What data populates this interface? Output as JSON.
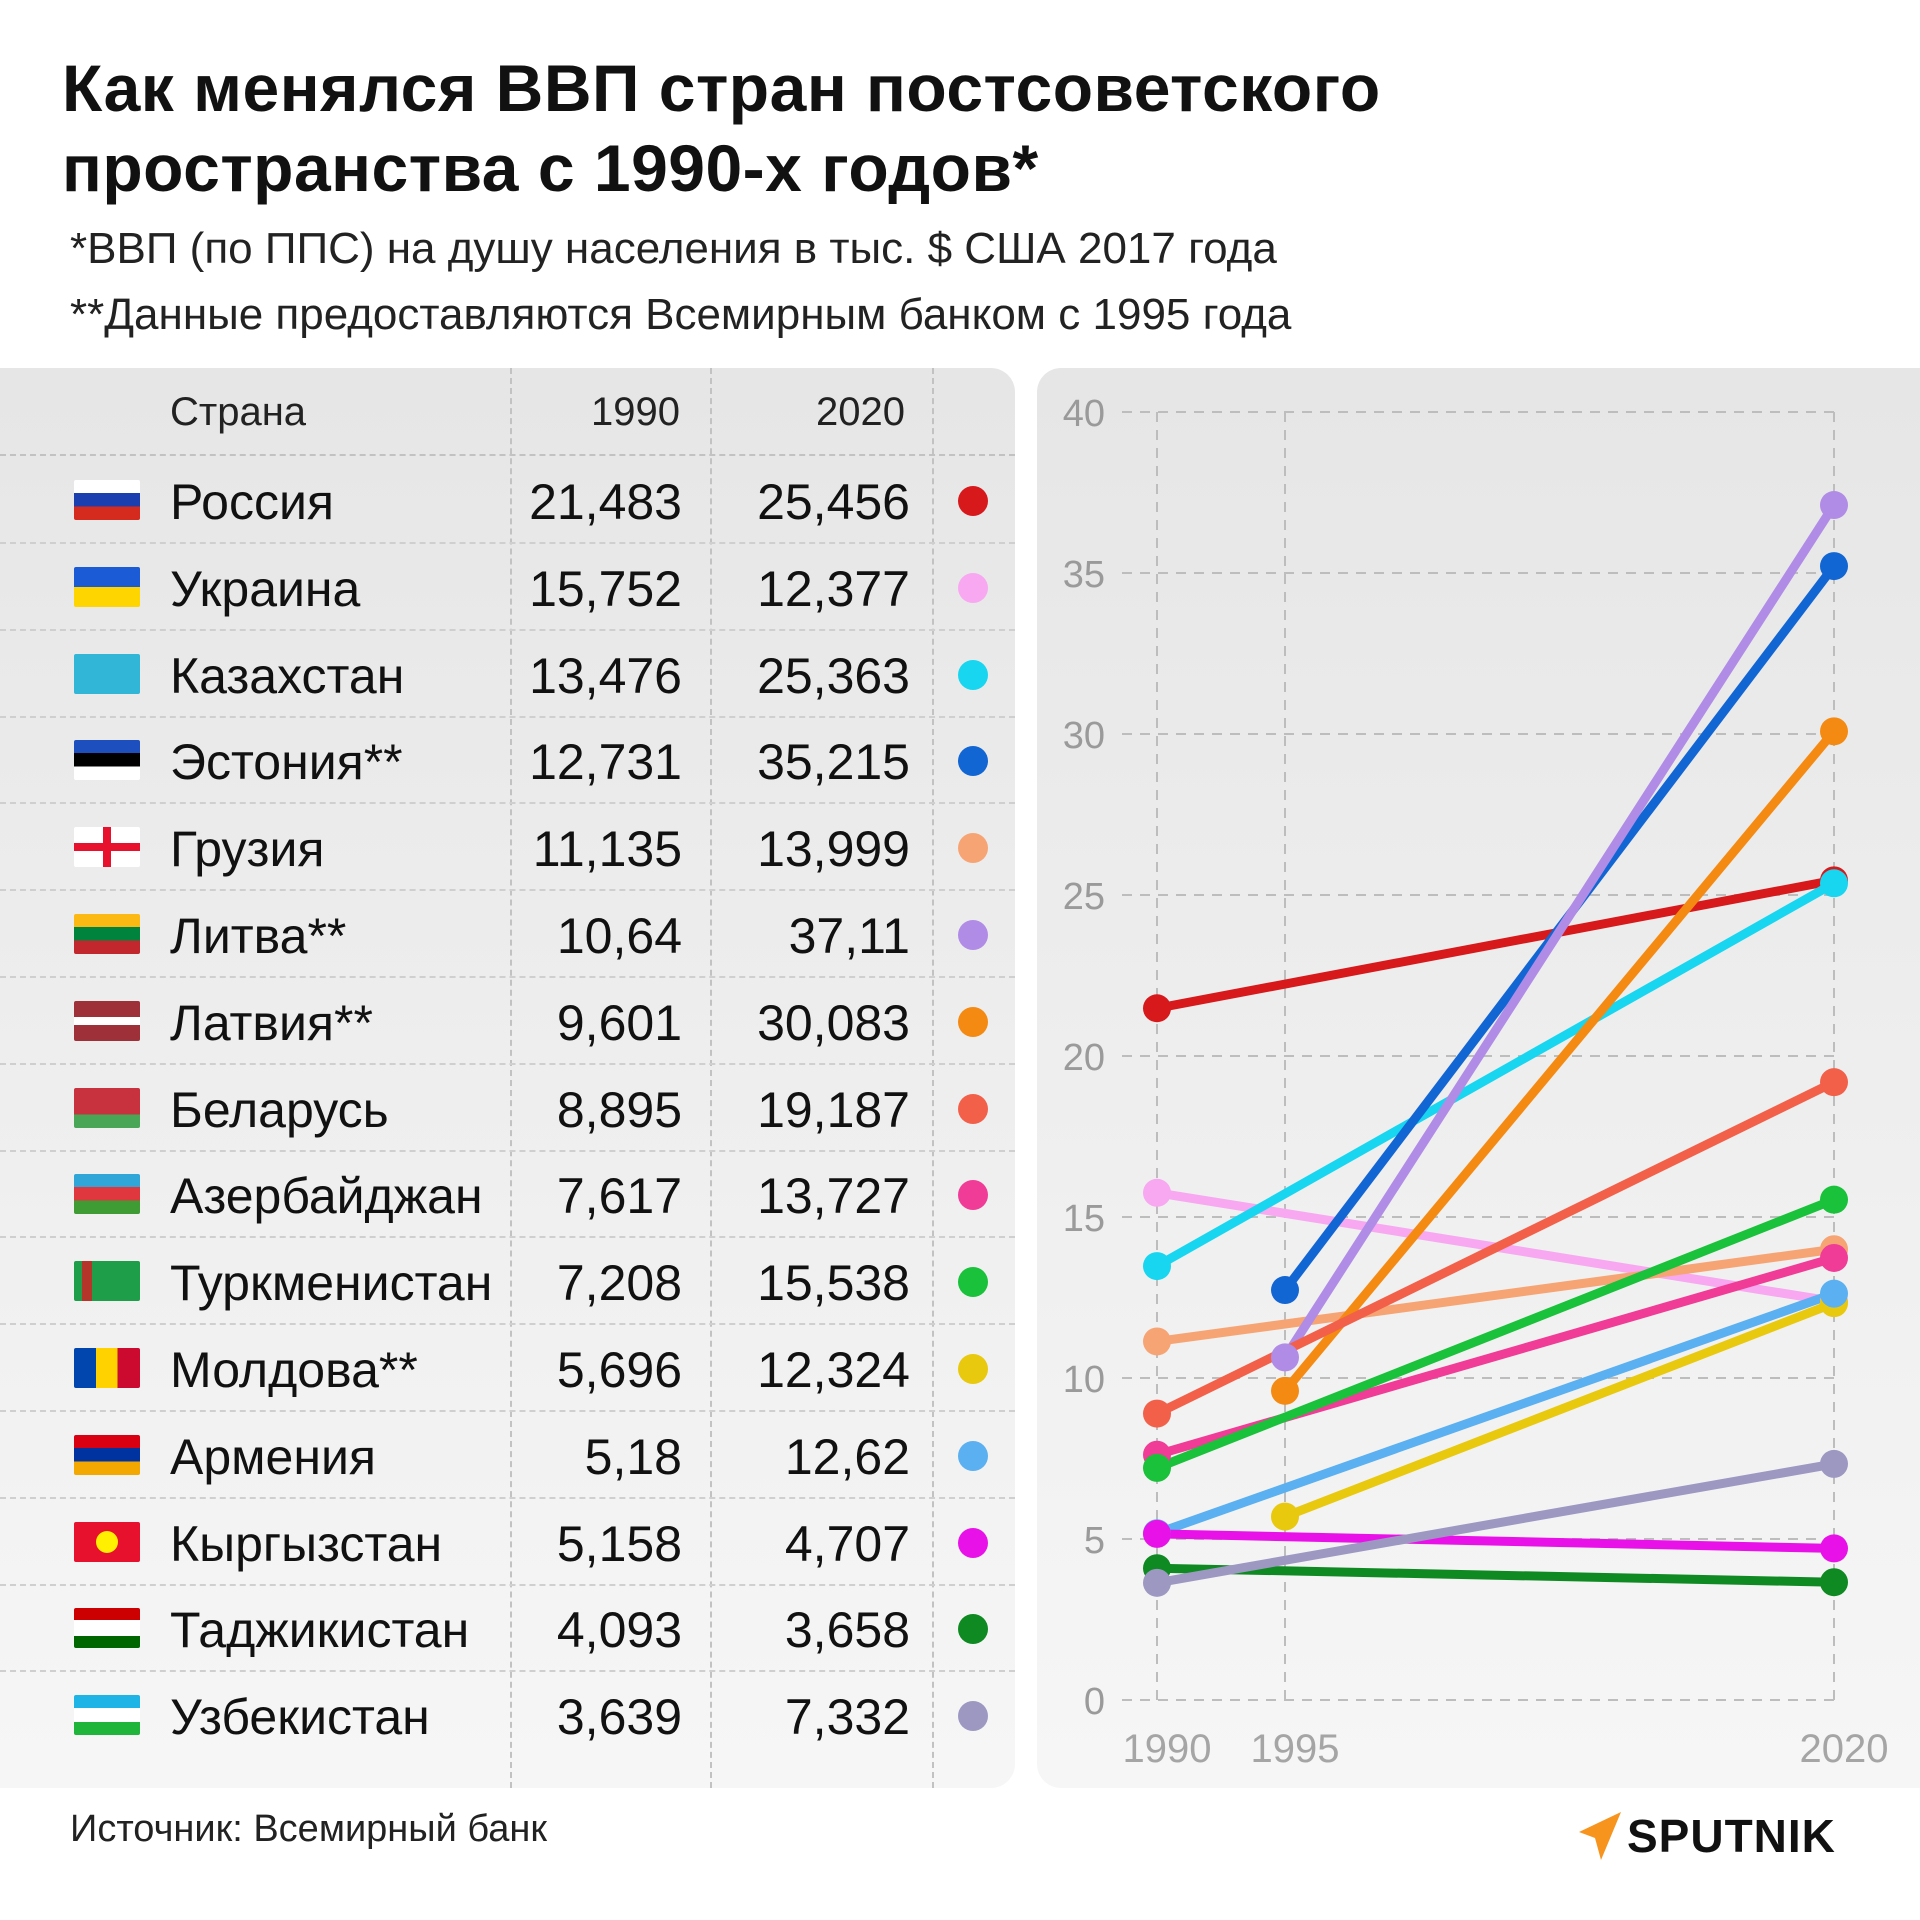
{
  "header": {
    "title": "Как менялся ВВП стран постсоветского пространства с 1990-х годов*",
    "subtitle1": "*ВВП (по ППС) на душу населения в тыс. $ США 2017 года",
    "subtitle2": "**Данные предоставляются Всемирным банком с 1995 года"
  },
  "table": {
    "col_country": "Страна",
    "col_1990": "1990",
    "col_2020": "2020",
    "rows": [
      {
        "country": "Россия",
        "v1990": "21,483",
        "v2020": "25,456",
        "color": "#d7191c",
        "flag": "ru"
      },
      {
        "country": "Украина",
        "v1990": "15,752",
        "v2020": "12,377",
        "color": "#f7a8f0",
        "flag": "ua"
      },
      {
        "country": "Казахстан",
        "v1990": "13,476",
        "v2020": "25,363",
        "color": "#18d6f0",
        "flag": "kz"
      },
      {
        "country": "Эстония**",
        "v1990": "12,731",
        "v2020": "35,215",
        "color": "#1266d4",
        "flag": "ee"
      },
      {
        "country": "Грузия",
        "v1990": "11,135",
        "v2020": "13,999",
        "color": "#f7a474",
        "flag": "ge"
      },
      {
        "country": "Литва**",
        "v1990": "10,64",
        "v2020": "37,11",
        "color": "#b08ce6",
        "flag": "lt"
      },
      {
        "country": "Латвия**",
        "v1990": "9,601",
        "v2020": "30,083",
        "color": "#f58a12",
        "flag": "lv"
      },
      {
        "country": "Беларусь",
        "v1990": "8,895",
        "v2020": "19,187",
        "color": "#f2604a",
        "flag": "by"
      },
      {
        "country": "Азербайджан",
        "v1990": "7,617",
        "v2020": "13,727",
        "color": "#f03c96",
        "flag": "az"
      },
      {
        "country": "Туркменистан",
        "v1990": "7,208",
        "v2020": "15,538",
        "color": "#19c23a",
        "flag": "tm"
      },
      {
        "country": "Молдова**",
        "v1990": "5,696",
        "v2020": "12,324",
        "color": "#e8c90e",
        "flag": "md"
      },
      {
        "country": "Армения",
        "v1990": "5,18",
        "v2020": "12,62",
        "color": "#5ab0f0",
        "flag": "am"
      },
      {
        "country": "Кыргызстан",
        "v1990": "5,158",
        "v2020": "4,707",
        "color": "#e812e8",
        "flag": "kg"
      },
      {
        "country": "Таджикистан",
        "v1990": "4,093",
        "v2020": "3,658",
        "color": "#0f8a22",
        "flag": "tj"
      },
      {
        "country": "Узбекистан",
        "v1990": "3,639",
        "v2020": "7,332",
        "color": "#9c98c2",
        "flag": "uz"
      }
    ]
  },
  "chart_data": {
    "type": "line",
    "title": "Как менялся ВВП стран постсоветского пространства с 1990-х годов*",
    "xlabel": "",
    "ylabel": "",
    "x_ticks": [
      "1990",
      "1995",
      "2020"
    ],
    "y_ticks": [
      "0",
      "5",
      "10",
      "15",
      "20",
      "25",
      "30",
      "35",
      "40"
    ],
    "ylim": [
      0,
      40
    ],
    "grid": true,
    "series": [
      {
        "name": "Россия",
        "color": "#d7191c",
        "points": [
          [
            1990,
            21.483
          ],
          [
            2020,
            25.456
          ]
        ]
      },
      {
        "name": "Украина",
        "color": "#f7a8f0",
        "points": [
          [
            1990,
            15.752
          ],
          [
            2020,
            12.377
          ]
        ]
      },
      {
        "name": "Казахстан",
        "color": "#18d6f0",
        "points": [
          [
            1990,
            13.476
          ],
          [
            2020,
            25.363
          ]
        ]
      },
      {
        "name": "Эстония**",
        "color": "#1266d4",
        "points": [
          [
            1995,
            12.731
          ],
          [
            2020,
            35.215
          ]
        ]
      },
      {
        "name": "Грузия",
        "color": "#f7a474",
        "points": [
          [
            1990,
            11.135
          ],
          [
            2020,
            13.999
          ]
        ]
      },
      {
        "name": "Литва**",
        "color": "#b08ce6",
        "points": [
          [
            1995,
            10.64
          ],
          [
            2020,
            37.11
          ]
        ]
      },
      {
        "name": "Латвия**",
        "color": "#f58a12",
        "points": [
          [
            1995,
            9.601
          ],
          [
            2020,
            30.083
          ]
        ]
      },
      {
        "name": "Беларусь",
        "color": "#f2604a",
        "points": [
          [
            1990,
            8.895
          ],
          [
            2020,
            19.187
          ]
        ]
      },
      {
        "name": "Азербайджан",
        "color": "#f03c96",
        "points": [
          [
            1990,
            7.617
          ],
          [
            2020,
            13.727
          ]
        ]
      },
      {
        "name": "Туркменистан",
        "color": "#19c23a",
        "points": [
          [
            1990,
            7.208
          ],
          [
            2020,
            15.538
          ]
        ]
      },
      {
        "name": "Молдова**",
        "color": "#e8c90e",
        "points": [
          [
            1995,
            5.696
          ],
          [
            2020,
            12.324
          ]
        ]
      },
      {
        "name": "Армения",
        "color": "#5ab0f0",
        "points": [
          [
            1990,
            5.18
          ],
          [
            2020,
            12.62
          ]
        ]
      },
      {
        "name": "Кыргызстан",
        "color": "#e812e8",
        "points": [
          [
            1990,
            5.158
          ],
          [
            2020,
            4.707
          ]
        ]
      },
      {
        "name": "Таджикистан",
        "color": "#0f8a22",
        "points": [
          [
            1990,
            4.093
          ],
          [
            2020,
            3.658
          ]
        ]
      },
      {
        "name": "Узбекистан",
        "color": "#9c98c2",
        "points": [
          [
            1990,
            3.639
          ],
          [
            2020,
            7.332
          ]
        ]
      }
    ]
  },
  "footer": {
    "source": "Источник: Всемирный банк",
    "logo_text": "SPUTNIK"
  }
}
